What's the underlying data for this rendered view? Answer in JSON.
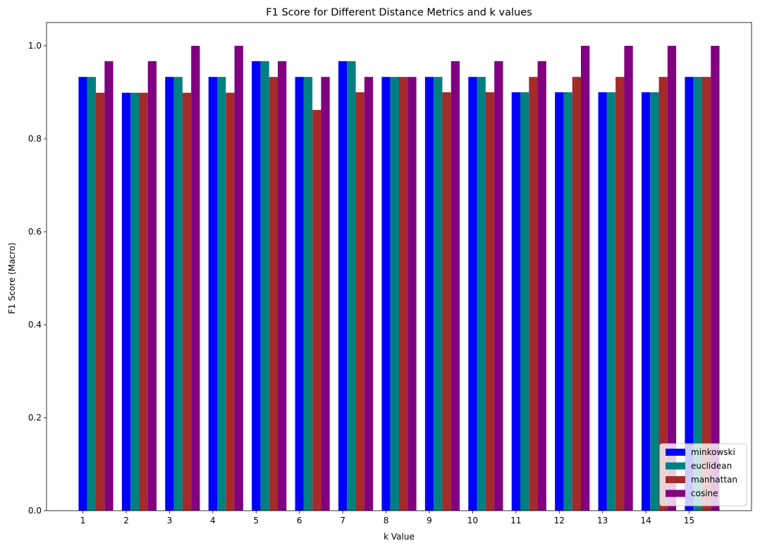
{
  "chart_data": {
    "type": "bar",
    "title": "F1 Score for Different Distance Metrics and k values",
    "xlabel": "k Value",
    "ylabel": "F1 Score (Macro)",
    "ylim": [
      0,
      1.05
    ],
    "yticks": [
      "0.0",
      "0.2",
      "0.4",
      "0.6",
      "0.8",
      "1.0"
    ],
    "categories": [
      "1",
      "2",
      "3",
      "4",
      "5",
      "6",
      "7",
      "8",
      "9",
      "10",
      "11",
      "12",
      "13",
      "14",
      "15"
    ],
    "legend_position": "bottom-right",
    "grid": false,
    "series": [
      {
        "name": "minkowski",
        "color": "#0000ff",
        "values": [
          0.933,
          0.899,
          0.933,
          0.933,
          0.967,
          0.933,
          0.967,
          0.933,
          0.933,
          0.933,
          0.9,
          0.9,
          0.9,
          0.9,
          0.933
        ]
      },
      {
        "name": "euclidean",
        "color": "#008080",
        "values": [
          0.933,
          0.899,
          0.933,
          0.933,
          0.967,
          0.933,
          0.967,
          0.933,
          0.933,
          0.933,
          0.9,
          0.9,
          0.9,
          0.9,
          0.933
        ]
      },
      {
        "name": "manhattan",
        "color": "#a52a2a",
        "values": [
          0.899,
          0.899,
          0.899,
          0.899,
          0.933,
          0.862,
          0.9,
          0.933,
          0.9,
          0.9,
          0.933,
          0.933,
          0.933,
          0.933,
          0.933
        ]
      },
      {
        "name": "cosine",
        "color": "#800080",
        "values": [
          0.967,
          0.967,
          1.0,
          1.0,
          0.967,
          0.933,
          0.933,
          0.933,
          0.967,
          0.967,
          0.967,
          1.0,
          1.0,
          1.0,
          1.0
        ]
      }
    ]
  }
}
